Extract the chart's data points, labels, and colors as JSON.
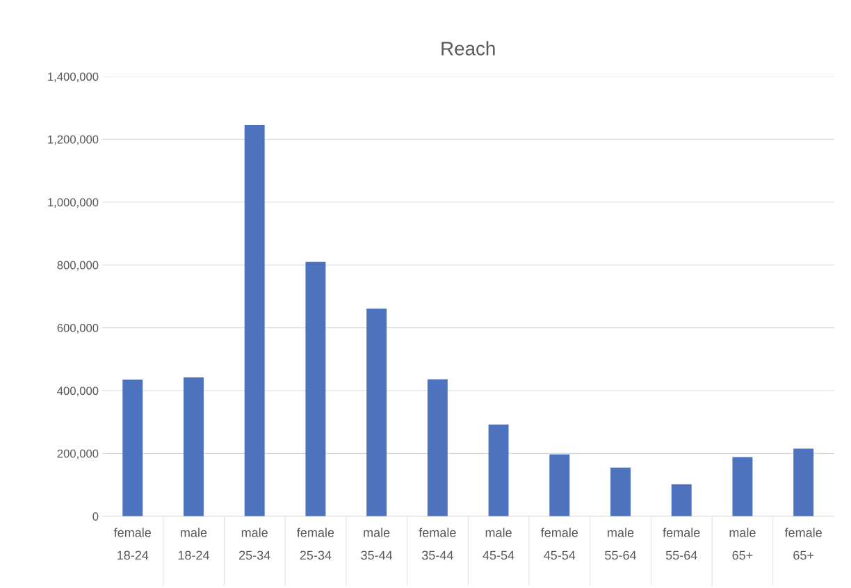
{
  "chart_data": {
    "type": "bar",
    "title": "Reach",
    "categories": [
      "female\n18-24",
      "male\n18-24",
      "male\n25-34",
      "female\n25-34",
      "male\n35-44",
      "female\n35-44",
      "male\n45-54",
      "female\n45-54",
      "male\n55-64",
      "female\n55-64",
      "male\n65+",
      "female\n65+"
    ],
    "values": [
      435000,
      442000,
      1245000,
      810000,
      661000,
      436000,
      292000,
      197000,
      155000,
      102000,
      188000,
      215000
    ],
    "color": "#4e73be",
    "ylim": [
      0,
      1400000
    ],
    "yticks": [
      {
        "value": 0,
        "label": "0"
      },
      {
        "value": 200000,
        "label": "200,000"
      },
      {
        "value": 400000,
        "label": "400,000"
      },
      {
        "value": 600000,
        "label": "600,000"
      },
      {
        "value": 800000,
        "label": "800,000"
      },
      {
        "value": 1000000,
        "label": "1,000,000"
      },
      {
        "value": 1200000,
        "label": "1,200,000"
      },
      {
        "value": 1400000,
        "label": "1,400,000"
      }
    ],
    "grid": "y",
    "legend": false
  }
}
